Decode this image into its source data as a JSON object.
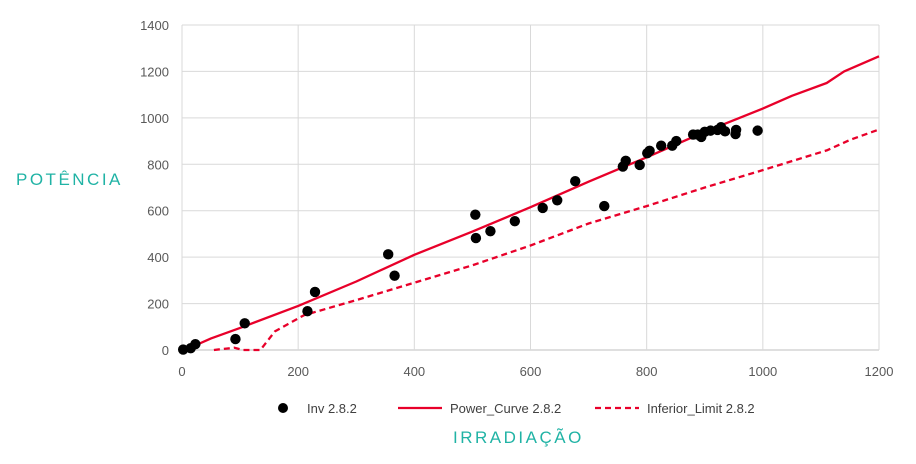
{
  "chart_data": {
    "type": "scatter",
    "xlabel": "IRRADIAÇÃO",
    "ylabel": "POTÊNCIA",
    "xlim": [
      0,
      1200
    ],
    "ylim": [
      0,
      1400
    ],
    "xticks": [
      0,
      200,
      400,
      600,
      800,
      1000,
      1200
    ],
    "yticks": [
      0,
      200,
      400,
      600,
      800,
      1000,
      1200,
      1400
    ],
    "grid": true,
    "legend_position": "bottom",
    "series": [
      {
        "name": "Inv 2.8.2",
        "kind": "scatter",
        "color": "#000000",
        "points": [
          [
            2,
            2
          ],
          [
            15,
            8
          ],
          [
            23,
            25
          ],
          [
            92,
            47
          ],
          [
            108,
            115
          ],
          [
            216,
            167
          ],
          [
            229,
            250
          ],
          [
            355,
            412
          ],
          [
            366,
            320
          ],
          [
            505,
            583
          ],
          [
            506,
            482
          ],
          [
            531,
            512
          ],
          [
            573,
            555
          ],
          [
            621,
            612
          ],
          [
            646,
            645
          ],
          [
            677,
            727
          ],
          [
            727,
            620
          ],
          [
            759,
            790
          ],
          [
            764,
            815
          ],
          [
            788,
            797
          ],
          [
            801,
            848
          ],
          [
            805,
            858
          ],
          [
            825,
            880
          ],
          [
            844,
            880
          ],
          [
            851,
            900
          ],
          [
            880,
            928
          ],
          [
            888,
            928
          ],
          [
            894,
            918
          ],
          [
            900,
            940
          ],
          [
            910,
            945
          ],
          [
            922,
            948
          ],
          [
            928,
            960
          ],
          [
            935,
            942
          ],
          [
            953,
            930
          ],
          [
            954,
            948
          ],
          [
            991,
            945
          ]
        ]
      },
      {
        "name": "Power_Curve 2.8.2",
        "kind": "line",
        "color": "#e8002a",
        "dash": "solid",
        "points": [
          [
            5,
            0
          ],
          [
            50,
            50
          ],
          [
            100,
            95
          ],
          [
            200,
            190
          ],
          [
            300,
            295
          ],
          [
            400,
            410
          ],
          [
            500,
            510
          ],
          [
            600,
            615
          ],
          [
            700,
            725
          ],
          [
            800,
            830
          ],
          [
            900,
            940
          ],
          [
            1000,
            1040
          ],
          [
            1050,
            1095
          ],
          [
            1110,
            1150
          ],
          [
            1140,
            1200
          ],
          [
            1200,
            1265
          ]
        ]
      },
      {
        "name": "Inferior_Limit 2.8.2",
        "kind": "line",
        "color": "#e8002a",
        "dash": "dashed",
        "points": [
          [
            55,
            0
          ],
          [
            90,
            10
          ],
          [
            105,
            0
          ],
          [
            135,
            0
          ],
          [
            160,
            80
          ],
          [
            210,
            150
          ],
          [
            300,
            215
          ],
          [
            400,
            290
          ],
          [
            500,
            365
          ],
          [
            600,
            450
          ],
          [
            700,
            545
          ],
          [
            800,
            620
          ],
          [
            900,
            700
          ],
          [
            1000,
            775
          ],
          [
            1110,
            860
          ],
          [
            1150,
            905
          ],
          [
            1200,
            950
          ]
        ]
      }
    ]
  }
}
